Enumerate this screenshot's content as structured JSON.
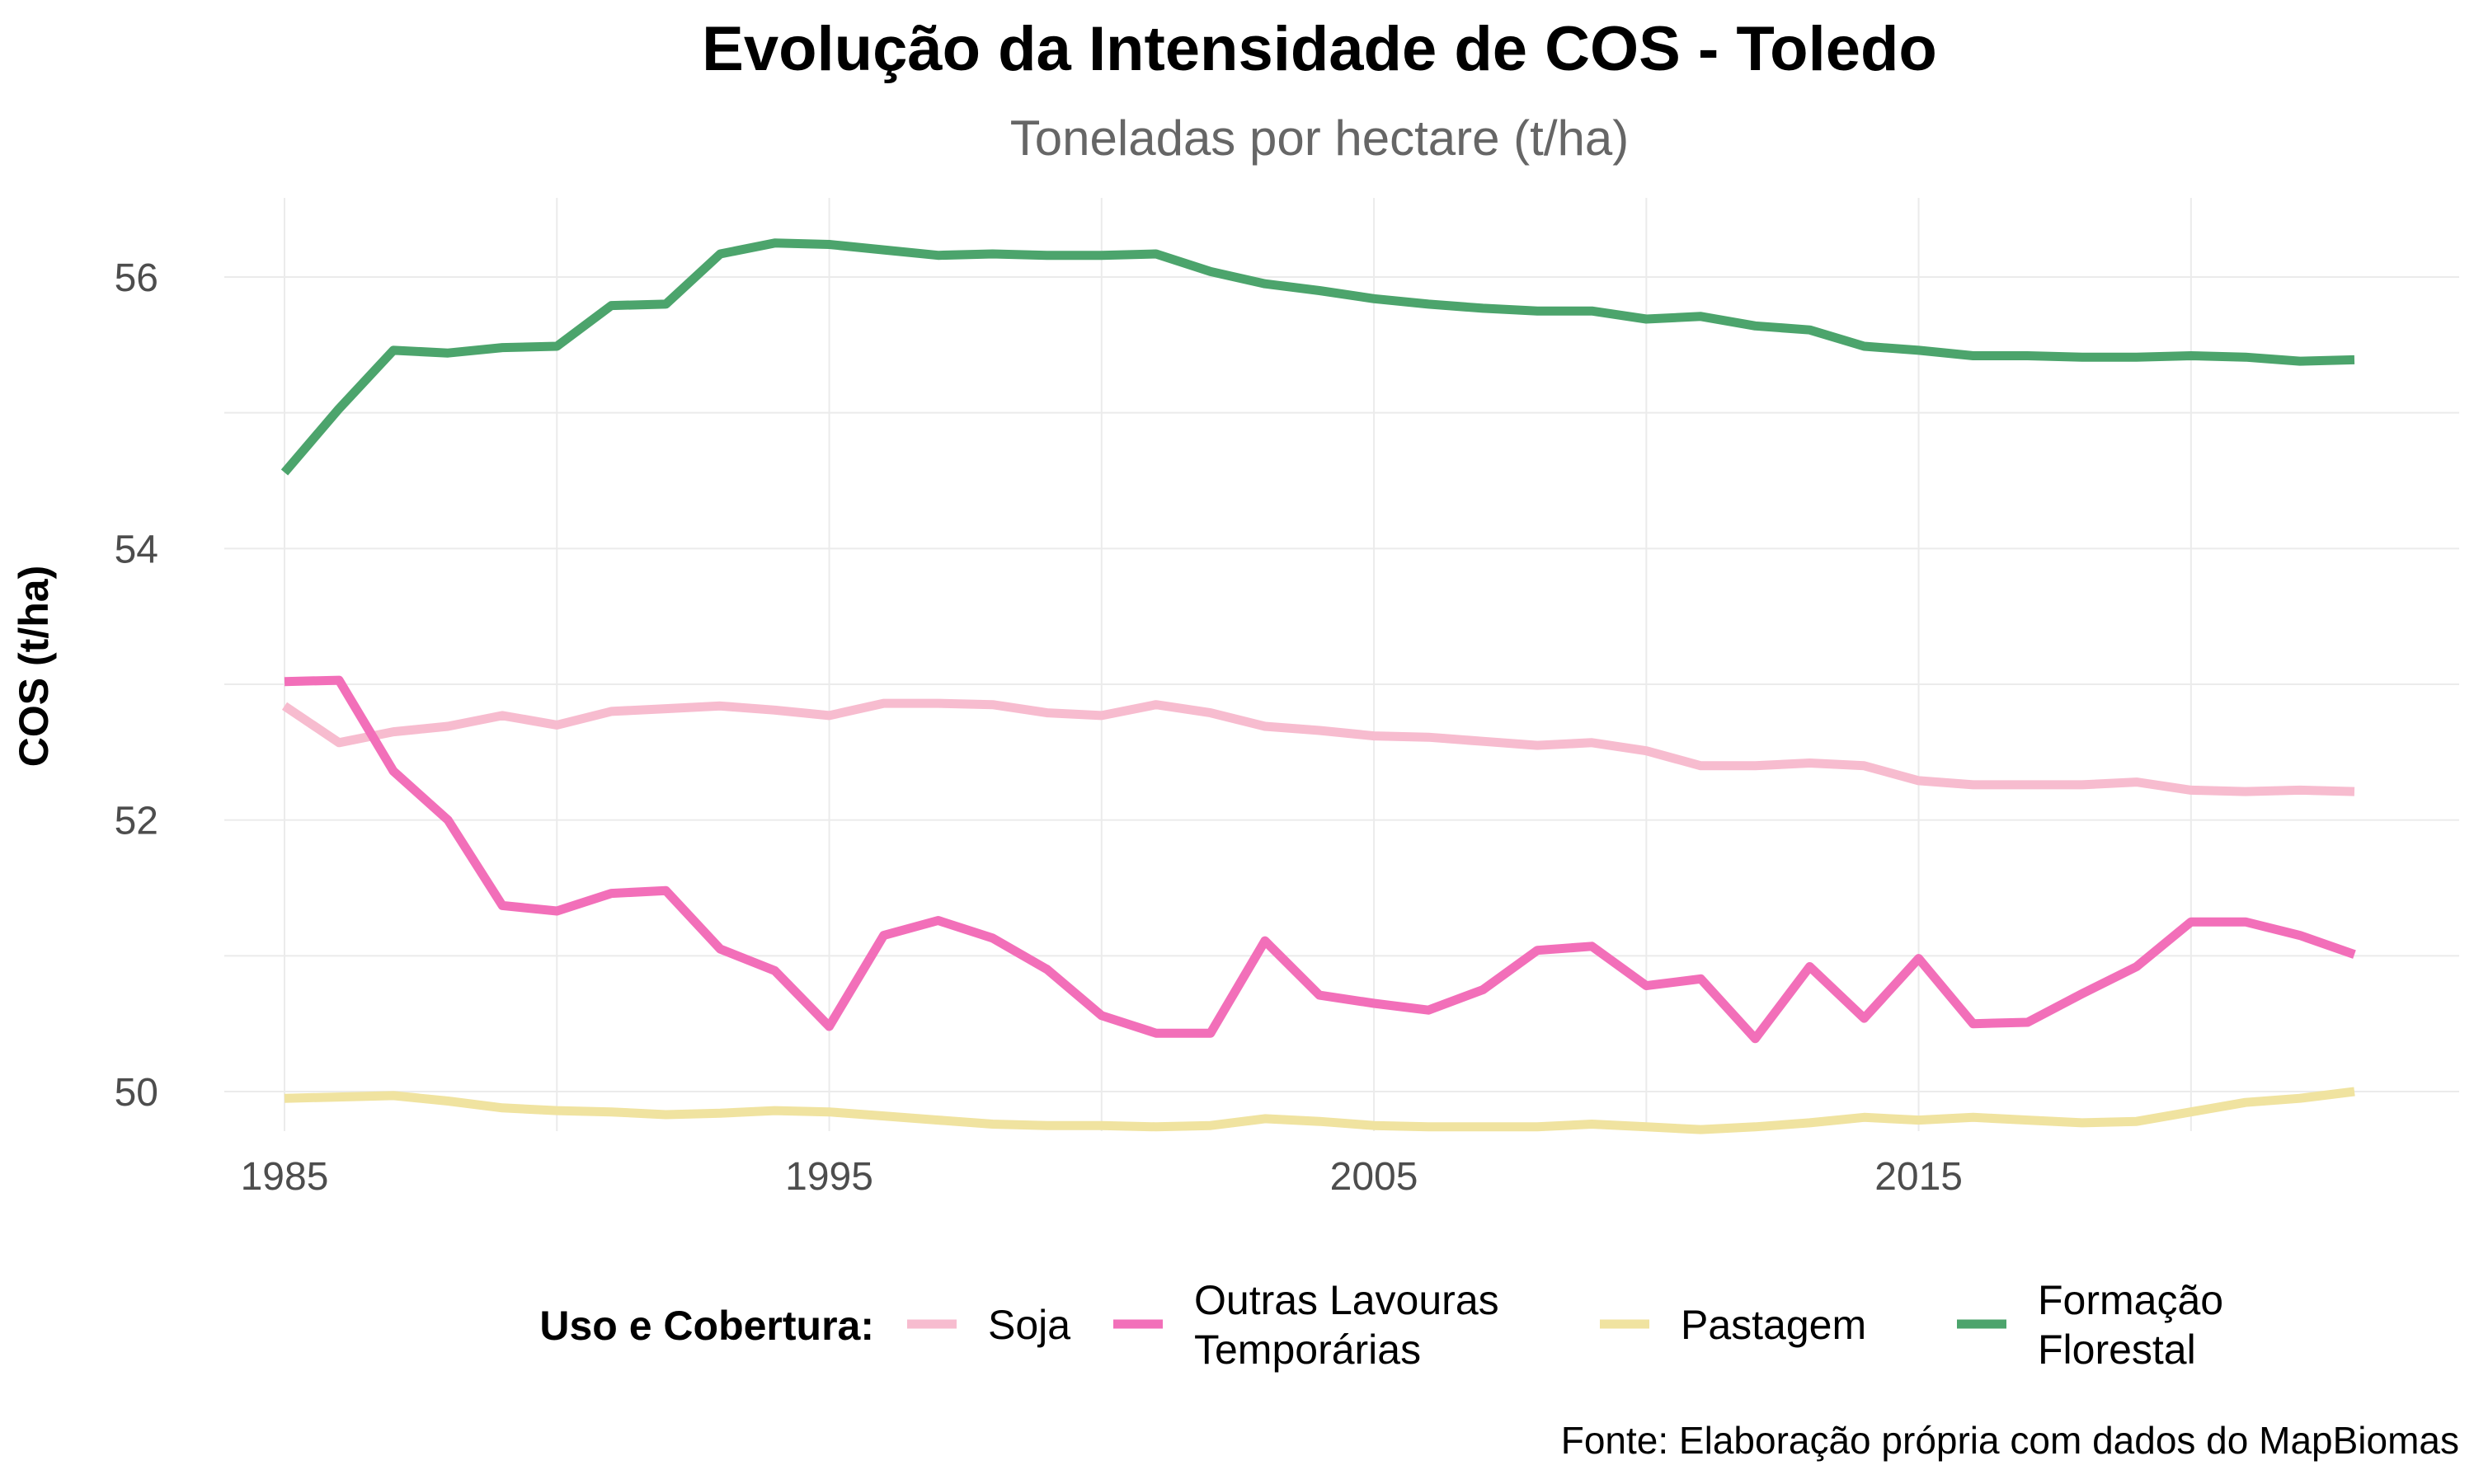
{
  "chart_data": {
    "type": "line",
    "title": "Evolução da Intensidade de COS - Toledo",
    "subtitle": "Toneladas por hectare (t/ha)",
    "xlabel": "",
    "ylabel": "COS (t/ha)",
    "caption": "Fonte: Elaboração própria com dados do MapBiomas",
    "xlim": [
      1985,
      2023
    ],
    "ylim": [
      50,
      56
    ],
    "x_ticks": [
      1985,
      1995,
      2005,
      2015
    ],
    "y_ticks": [
      50,
      52,
      54,
      56
    ],
    "grid": true,
    "legend": {
      "title": "Uso e Cobertura:",
      "position": "bottom"
    },
    "x": [
      1985,
      1986,
      1987,
      1988,
      1989,
      1990,
      1991,
      1992,
      1993,
      1994,
      1995,
      1996,
      1997,
      1998,
      1999,
      2000,
      2001,
      2002,
      2003,
      2004,
      2005,
      2006,
      2007,
      2008,
      2009,
      2010,
      2011,
      2012,
      2013,
      2014,
      2015,
      2016,
      2017,
      2018,
      2019,
      2020,
      2021,
      2022,
      2023
    ],
    "series": [
      {
        "name": "Soja",
        "label_lines": [
          "Soja"
        ],
        "color": "#f7bccf",
        "values": [
          52.84,
          52.57,
          52.65,
          52.69,
          52.77,
          52.7,
          52.8,
          52.82,
          52.84,
          52.81,
          52.77,
          52.86,
          52.86,
          52.85,
          52.79,
          52.77,
          52.85,
          52.79,
          52.69,
          52.66,
          52.62,
          52.61,
          52.58,
          52.55,
          52.57,
          52.51,
          52.4,
          52.4,
          52.42,
          52.4,
          52.29,
          52.26,
          52.26,
          52.26,
          52.28,
          52.22,
          52.21,
          52.22,
          52.21
        ]
      },
      {
        "name": "Outras Lavouras Temporárias",
        "label_lines": [
          "Outras Lavouras",
          "Temporárias"
        ],
        "color": "#f26fb9",
        "values": [
          53.02,
          53.03,
          52.36,
          52.0,
          51.37,
          51.33,
          51.46,
          51.48,
          51.05,
          50.89,
          50.48,
          51.15,
          51.26,
          51.13,
          50.9,
          50.56,
          50.43,
          50.43,
          51.11,
          50.71,
          50.65,
          50.6,
          50.75,
          51.04,
          51.07,
          50.78,
          50.83,
          50.39,
          50.92,
          50.54,
          50.98,
          50.5,
          50.51,
          50.72,
          50.92,
          51.25,
          51.25,
          51.15,
          51.01
        ]
      },
      {
        "name": "Pastagem",
        "label_lines": [
          "Pastagem"
        ],
        "color": "#f0e3a0",
        "values": [
          49.95,
          49.96,
          49.97,
          49.93,
          49.88,
          49.86,
          49.85,
          49.83,
          49.84,
          49.86,
          49.85,
          49.82,
          49.79,
          49.76,
          49.75,
          49.75,
          49.74,
          49.75,
          49.8,
          49.78,
          49.75,
          49.74,
          49.74,
          49.74,
          49.76,
          49.74,
          49.72,
          49.74,
          49.77,
          49.81,
          49.79,
          49.81,
          49.79,
          49.77,
          49.78,
          49.85,
          49.92,
          49.95,
          50.0
        ]
      },
      {
        "name": "Formação Florestal",
        "label_lines": [
          "Formação",
          "Florestal"
        ],
        "color": "#4ca46c",
        "values": [
          54.56,
          55.03,
          55.46,
          55.44,
          55.48,
          55.49,
          55.79,
          55.8,
          56.17,
          56.25,
          56.24,
          56.2,
          56.16,
          56.17,
          56.16,
          56.16,
          56.17,
          56.04,
          55.95,
          55.9,
          55.84,
          55.8,
          55.77,
          55.75,
          55.75,
          55.69,
          55.71,
          55.64,
          55.61,
          55.49,
          55.46,
          55.42,
          55.42,
          55.41,
          55.41,
          55.42,
          55.41,
          55.38,
          55.39
        ]
      }
    ]
  }
}
